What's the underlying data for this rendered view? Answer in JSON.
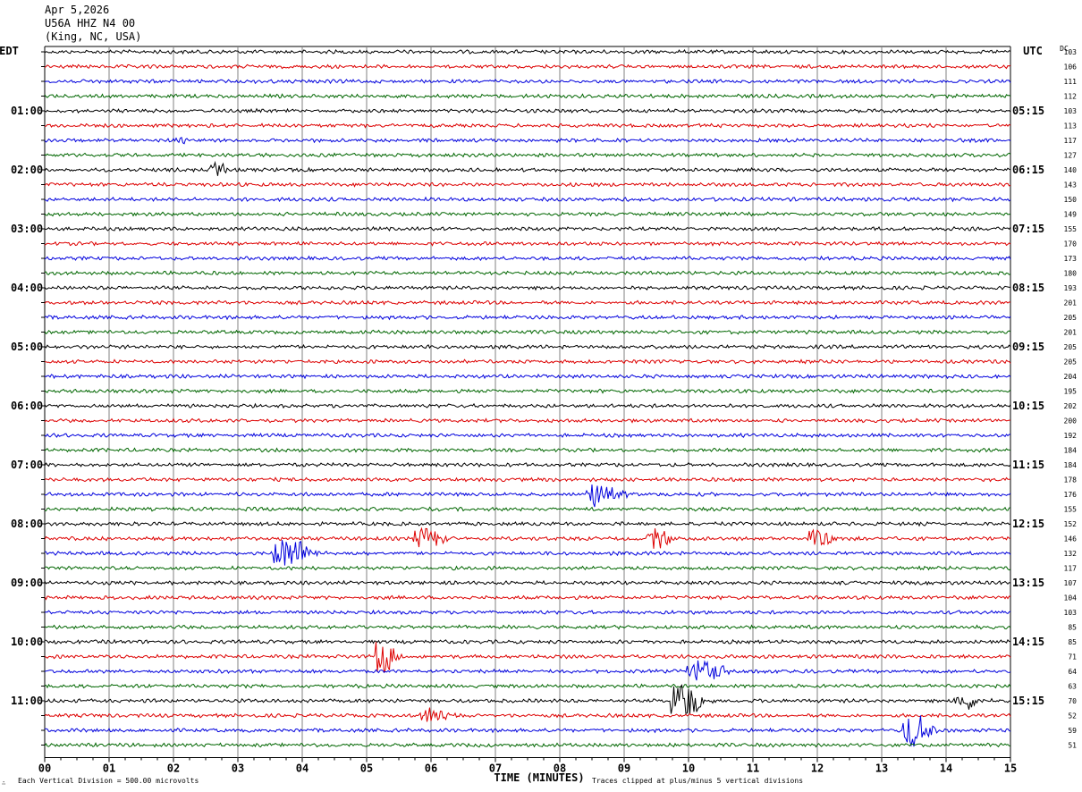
{
  "header": {
    "date": "Apr 5,2026",
    "station": "U56A HHZ N4 00",
    "location": "(King, NC, USA)"
  },
  "chart_data": {
    "type": "line",
    "title": "",
    "xlabel": "TIME (MINUTES)",
    "left_axis_label": "EDT",
    "right_axis_label": "UTC",
    "dc_label": "DC",
    "x_ticks": [
      "00",
      "01",
      "02",
      "03",
      "04",
      "05",
      "06",
      "07",
      "08",
      "09",
      "10",
      "11",
      "12",
      "13",
      "14",
      "15"
    ],
    "xlim": [
      0,
      15
    ],
    "trace_count": 48,
    "trace_colors": [
      "#000000",
      "#dd0000",
      "#0000dd",
      "#006600"
    ],
    "left_hour_labels": [
      "01:00",
      "02:00",
      "03:00",
      "04:00",
      "05:00",
      "06:00",
      "07:00",
      "08:00",
      "09:00",
      "10:00",
      "11:00"
    ],
    "right_hour_labels": [
      "05:15",
      "06:15",
      "07:15",
      "08:15",
      "09:15",
      "10:15",
      "11:15",
      "12:15",
      "13:15",
      "14:15",
      "15:15"
    ],
    "dc_offsets": [
      103,
      106,
      111,
      112,
      103,
      113,
      117,
      127,
      140,
      143,
      150,
      149,
      155,
      170,
      173,
      180,
      193,
      201,
      205,
      201,
      205,
      205,
      204,
      195,
      202,
      200,
      192,
      184,
      184,
      178,
      176,
      155,
      152,
      146,
      132,
      117,
      107,
      104,
      103,
      85,
      85,
      71,
      64,
      63,
      70,
      52,
      59,
      51
    ],
    "events": [
      {
        "trace": 6,
        "minute": 2.1,
        "amp": 0.25,
        "dur": 0.25
      },
      {
        "trace": 8,
        "minute": 2.7,
        "amp": 0.5,
        "dur": 0.4
      },
      {
        "trace": 30,
        "minute": 8.6,
        "amp": 1.0,
        "dur": 0.7
      },
      {
        "trace": 33,
        "minute": 5.9,
        "amp": 0.8,
        "dur": 0.6
      },
      {
        "trace": 33,
        "minute": 9.5,
        "amp": 0.9,
        "dur": 0.5
      },
      {
        "trace": 33,
        "minute": 12.0,
        "amp": 0.7,
        "dur": 0.5
      },
      {
        "trace": 34,
        "minute": 3.8,
        "amp": 1.2,
        "dur": 0.8
      },
      {
        "trace": 41,
        "minute": 5.25,
        "amp": 1.5,
        "dur": 0.4
      },
      {
        "trace": 42,
        "minute": 10.2,
        "amp": 0.9,
        "dur": 0.8
      },
      {
        "trace": 44,
        "minute": 9.9,
        "amp": 1.6,
        "dur": 0.6
      },
      {
        "trace": 44,
        "minute": 14.3,
        "amp": 0.6,
        "dur": 0.6
      },
      {
        "trace": 45,
        "minute": 6.0,
        "amp": 0.7,
        "dur": 0.6
      },
      {
        "trace": 46,
        "minute": 13.5,
        "amp": 1.3,
        "dur": 0.6
      }
    ],
    "footer": {
      "division_note": "Each Vertical Division =  500.00 microvolts",
      "clip_note": "Traces clipped at plus/minus 5 vertical divisions"
    }
  }
}
